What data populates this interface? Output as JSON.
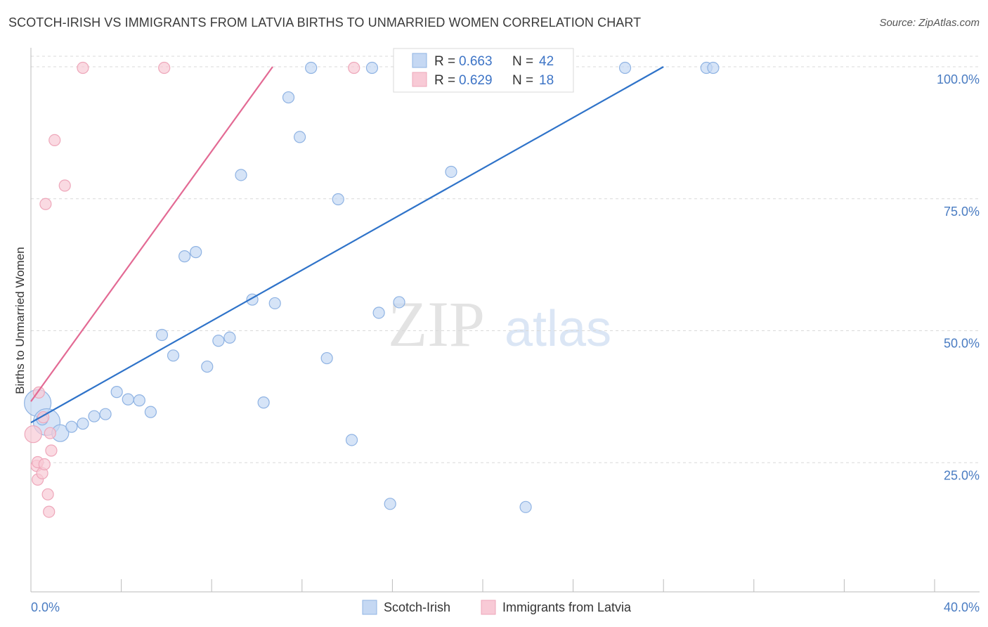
{
  "title": "SCOTCH-IRISH VS IMMIGRANTS FROM LATVIA BIRTHS TO UNMARRIED WOMEN CORRELATION CHART",
  "source": "Source: ZipAtlas.com",
  "watermark": {
    "zip": "ZIP",
    "atlas": "atlas"
  },
  "colors": {
    "blue_fill": "#c5d8f3",
    "blue_stroke": "#8fb3e3",
    "blue_line": "#2f73c9",
    "pink_fill": "#f8cad6",
    "pink_stroke": "#eea7ba",
    "pink_line": "#e36a94",
    "grid": "#d9d9d9",
    "tick_text": "#4a7cc2"
  },
  "legend_stats": [
    {
      "r_label": "R =",
      "r_value": "0.663",
      "n_label": "N =",
      "n_value": "42",
      "color": "blue"
    },
    {
      "r_label": "R =",
      "r_value": "0.629",
      "n_label": "N =",
      "n_value": "18",
      "color": "pink"
    }
  ],
  "bottom_legend": [
    {
      "label": "Scotch-Irish",
      "color": "blue"
    },
    {
      "label": "Immigrants from Latvia",
      "color": "pink"
    }
  ],
  "chart_data": {
    "type": "scatter",
    "title": "SCOTCH-IRISH VS IMMIGRANTS FROM LATVIA BIRTHS TO UNMARRIED WOMEN CORRELATION CHART",
    "xlabel": "",
    "ylabel": "Births to Unmarried Women",
    "xlim": [
      0,
      40
    ],
    "ylim": [
      0,
      102
    ],
    "x_tick_labels": [
      "0.0%",
      "40.0%"
    ],
    "y_ticks": [
      {
        "value": 25,
        "label": "25.0%"
      },
      {
        "value": 50,
        "label": "50.0%"
      },
      {
        "value": 75,
        "label": "75.0%"
      },
      {
        "value": 100,
        "label": "100.0%"
      }
    ],
    "grid": true,
    "legend_position": "top-center",
    "series": [
      {
        "name": "Scotch-Irish",
        "color": "blue",
        "trend": {
          "x": [
            0,
            28.0
          ],
          "y": [
            32.6,
            100
          ]
        },
        "points": [
          {
            "x": 0.3,
            "y": 36.3,
            "size": "large"
          },
          {
            "x": 0.7,
            "y": 32.7,
            "size": "large"
          },
          {
            "x": 1.3,
            "y": 30.6,
            "size": "medium"
          },
          {
            "x": 1.8,
            "y": 31.8,
            "size": "small"
          },
          {
            "x": 2.3,
            "y": 32.4,
            "size": "small"
          },
          {
            "x": 2.8,
            "y": 33.8,
            "size": "small"
          },
          {
            "x": 3.3,
            "y": 34.2,
            "size": "small"
          },
          {
            "x": 3.8,
            "y": 38.4,
            "size": "small"
          },
          {
            "x": 4.3,
            "y": 37.0,
            "size": "small"
          },
          {
            "x": 4.8,
            "y": 36.8,
            "size": "small"
          },
          {
            "x": 5.3,
            "y": 34.6,
            "size": "small"
          },
          {
            "x": 5.8,
            "y": 49.2,
            "size": "small"
          },
          {
            "x": 6.3,
            "y": 45.3,
            "size": "small"
          },
          {
            "x": 6.8,
            "y": 64.1,
            "size": "small"
          },
          {
            "x": 7.3,
            "y": 64.9,
            "size": "small"
          },
          {
            "x": 7.8,
            "y": 43.2,
            "size": "small"
          },
          {
            "x": 8.3,
            "y": 48.1,
            "size": "small"
          },
          {
            "x": 8.8,
            "y": 48.7,
            "size": "small"
          },
          {
            "x": 9.3,
            "y": 79.5,
            "size": "small"
          },
          {
            "x": 9.8,
            "y": 55.9,
            "size": "small"
          },
          {
            "x": 10.3,
            "y": 36.4,
            "size": "small"
          },
          {
            "x": 10.8,
            "y": 55.2,
            "size": "small"
          },
          {
            "x": 11.4,
            "y": 94.2,
            "size": "small"
          },
          {
            "x": 11.9,
            "y": 86.7,
            "size": "small"
          },
          {
            "x": 12.4,
            "y": 99.8,
            "size": "small"
          },
          {
            "x": 13.1,
            "y": 44.8,
            "size": "small"
          },
          {
            "x": 13.6,
            "y": 74.9,
            "size": "small"
          },
          {
            "x": 14.2,
            "y": 29.3,
            "size": "small"
          },
          {
            "x": 15.1,
            "y": 99.8,
            "size": "small"
          },
          {
            "x": 15.4,
            "y": 53.4,
            "size": "small"
          },
          {
            "x": 15.9,
            "y": 17.2,
            "size": "small"
          },
          {
            "x": 16.3,
            "y": 55.4,
            "size": "small"
          },
          {
            "x": 18.6,
            "y": 80.1,
            "size": "small"
          },
          {
            "x": 19.3,
            "y": 99.8,
            "size": "small"
          },
          {
            "x": 19.8,
            "y": 99.8,
            "size": "small"
          },
          {
            "x": 21.3,
            "y": 99.8,
            "size": "small"
          },
          {
            "x": 21.9,
            "y": 16.6,
            "size": "small"
          },
          {
            "x": 22.4,
            "y": 99.8,
            "size": "small"
          },
          {
            "x": 26.3,
            "y": 99.8,
            "size": "small"
          },
          {
            "x": 29.9,
            "y": 99.8,
            "size": "small"
          },
          {
            "x": 30.2,
            "y": 99.8,
            "size": "small"
          },
          {
            "x": 0.5,
            "y": 33.2,
            "size": "small"
          }
        ]
      },
      {
        "name": "Immigrants from Latvia",
        "color": "pink",
        "trend": {
          "x": [
            0,
            10.7
          ],
          "y": [
            36.6,
            100
          ]
        },
        "points": [
          {
            "x": 0.1,
            "y": 30.4,
            "size": "medium"
          },
          {
            "x": 0.25,
            "y": 24.4,
            "size": "small"
          },
          {
            "x": 0.3,
            "y": 25.1,
            "size": "small"
          },
          {
            "x": 0.3,
            "y": 21.8,
            "size": "small"
          },
          {
            "x": 0.35,
            "y": 38.3,
            "size": "small"
          },
          {
            "x": 0.5,
            "y": 23.0,
            "size": "small"
          },
          {
            "x": 0.55,
            "y": 33.6,
            "size": "small"
          },
          {
            "x": 0.6,
            "y": 24.7,
            "size": "small"
          },
          {
            "x": 0.65,
            "y": 74.0,
            "size": "small"
          },
          {
            "x": 0.75,
            "y": 19.0,
            "size": "small"
          },
          {
            "x": 0.8,
            "y": 15.7,
            "size": "small"
          },
          {
            "x": 0.85,
            "y": 30.6,
            "size": "small"
          },
          {
            "x": 0.9,
            "y": 27.3,
            "size": "small"
          },
          {
            "x": 1.05,
            "y": 86.1,
            "size": "small"
          },
          {
            "x": 1.5,
            "y": 77.5,
            "size": "small"
          },
          {
            "x": 2.3,
            "y": 99.8,
            "size": "small"
          },
          {
            "x": 5.9,
            "y": 99.8,
            "size": "small"
          },
          {
            "x": 14.3,
            "y": 99.8,
            "size": "small"
          }
        ]
      }
    ]
  }
}
